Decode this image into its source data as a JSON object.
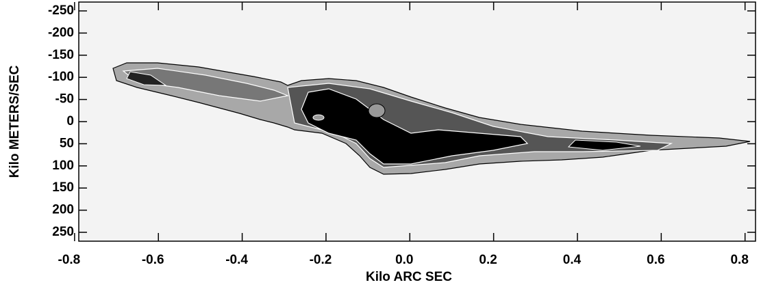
{
  "chart_data": {
    "type": "image",
    "xlabel": "Kilo ARC SEC",
    "ylabel": "Kilo METERS/SEC",
    "xlim": [
      -0.79,
      0.825
    ],
    "ylim": [
      270,
      -270
    ],
    "xticks": [
      -0.8,
      -0.6,
      -0.4,
      -0.2,
      {
        "value": 0,
        "label": "0.0"
      },
      0.2,
      0.4,
      0.6,
      0.8
    ],
    "yticks": [
      -250,
      -200,
      -150,
      -100,
      -50,
      0,
      50,
      100,
      150,
      200,
      250
    ]
  }
}
